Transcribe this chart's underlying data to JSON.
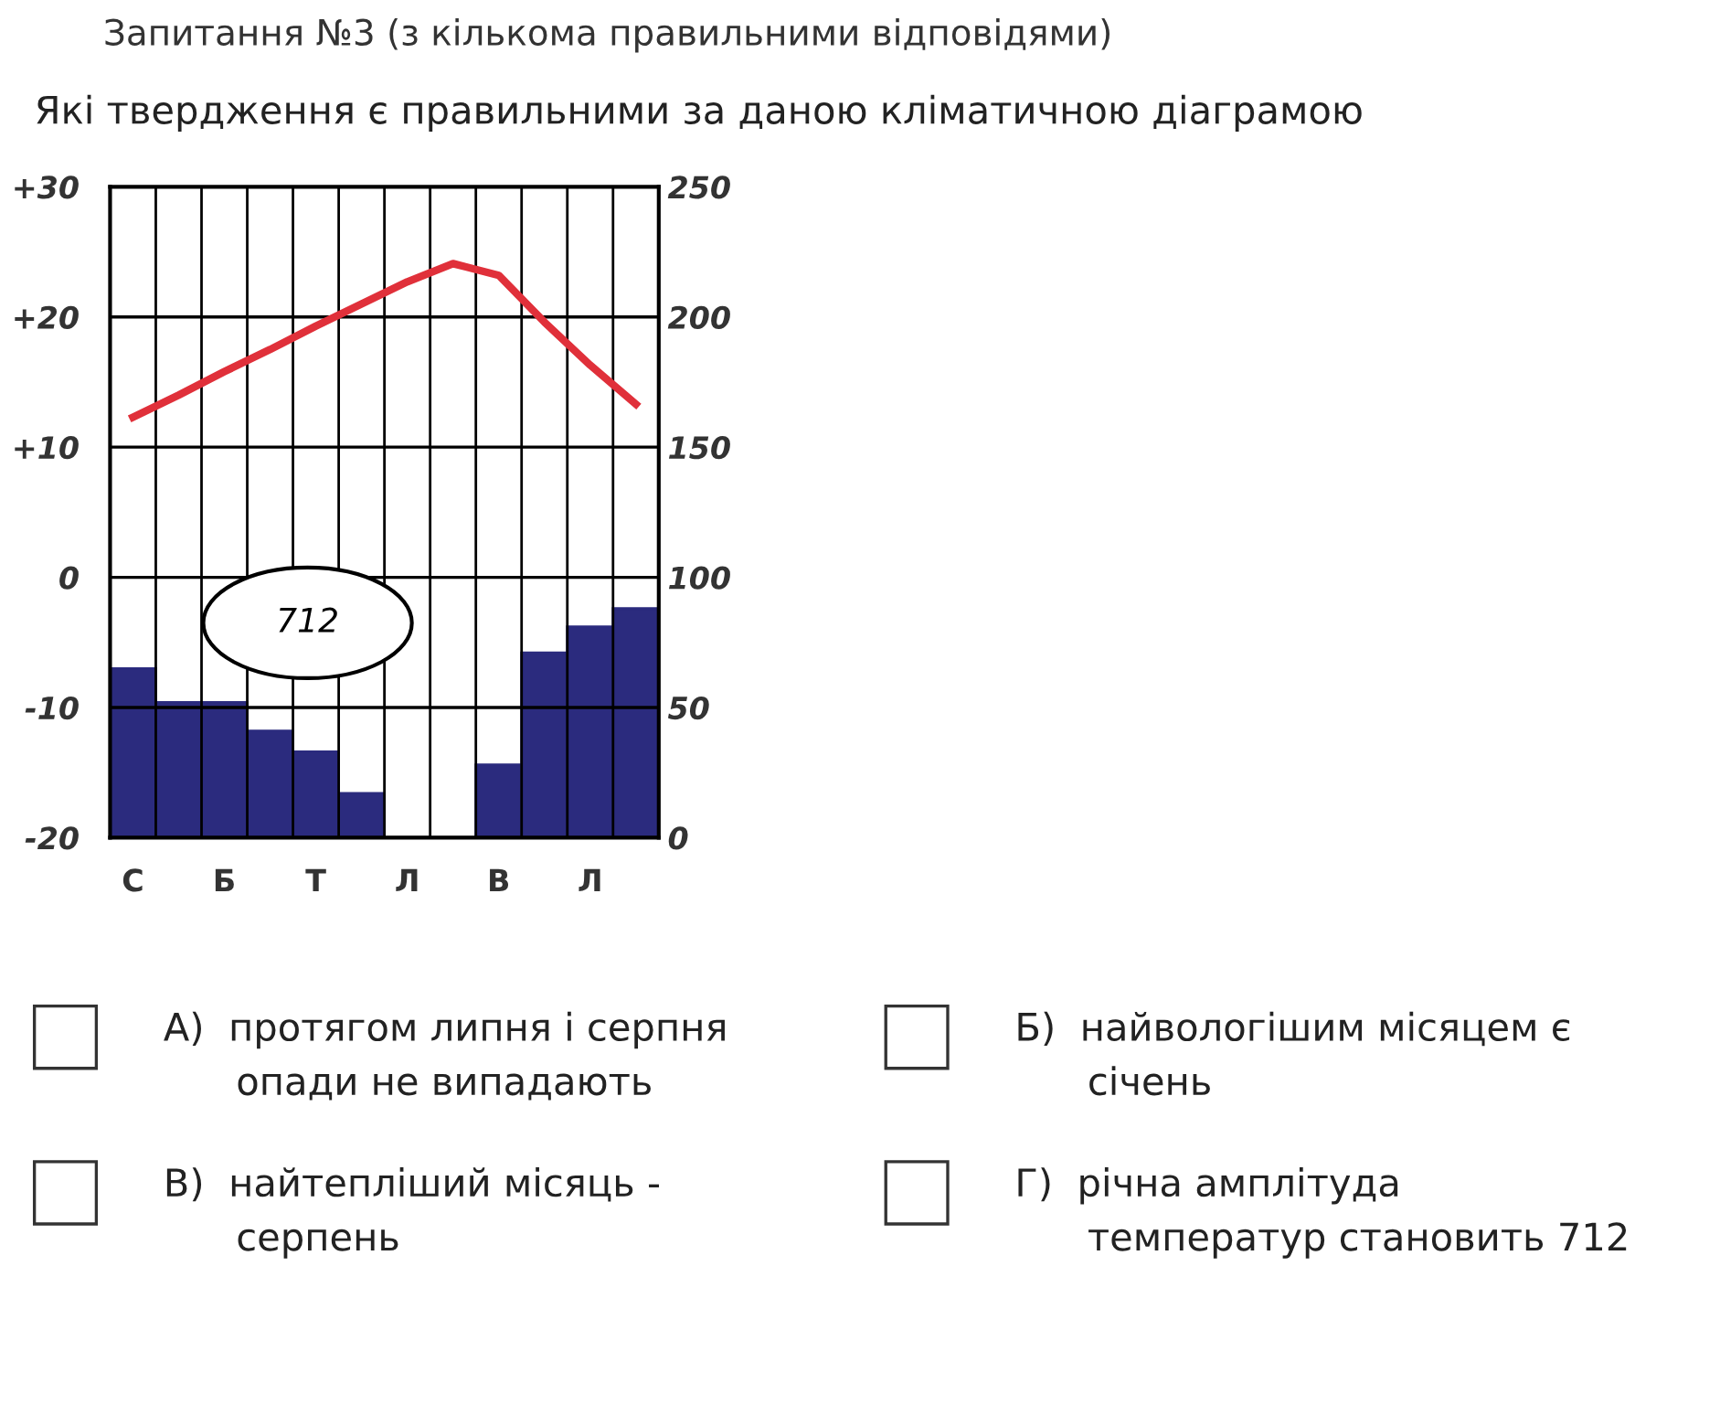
{
  "chart_data": {
    "type": "bar",
    "title": "Запитання №3 (з кількома правильними відповідями)",
    "subtitle": "Які твердження є правильними за даною кліматичною діаграмою",
    "categories": [
      "С",
      null,
      "Б",
      null,
      "Т",
      null,
      "Л",
      null,
      "В",
      null,
      "Л",
      null
    ],
    "series": [
      {
        "axis": "y2",
        "color": "#2b2b7e",
        "values": [
          65,
          52,
          52,
          41,
          33,
          17,
          0,
          0,
          28,
          71,
          81,
          88
        ]
      },
      {
        "type": "line",
        "axis": "y",
        "color": "#e0303a",
        "values": [
          12.3,
          14.0,
          15.8,
          17.5,
          19.3,
          21.0,
          22.7,
          24.1,
          23.2,
          19.6,
          16.3,
          13.3
        ]
      }
    ],
    "ylim": [
      -20,
      30
    ],
    "yticks": [
      {
        "value": -20,
        "label": "-20"
      },
      {
        "value": -10,
        "label": "-10"
      },
      0,
      {
        "value": 10,
        "label": "+10"
      },
      {
        "value": 20,
        "label": "+20"
      },
      {
        "value": 30,
        "label": "+30"
      }
    ],
    "y2lim": [
      0,
      250
    ],
    "y2ticks": [
      0,
      50,
      100,
      150,
      200,
      250
    ],
    "grid": true,
    "line_style": "solid",
    "marker": "none",
    "annotations": [
      "712",
      "А)  протягом липня і серпня\n      опади не випадають",
      "Б)  найвологішим місяцем є\n      січень",
      "В)  найтепліший місяць -\n      серпень",
      "Г)  річна амплітуда\n      температур становить 712"
    ]
  }
}
